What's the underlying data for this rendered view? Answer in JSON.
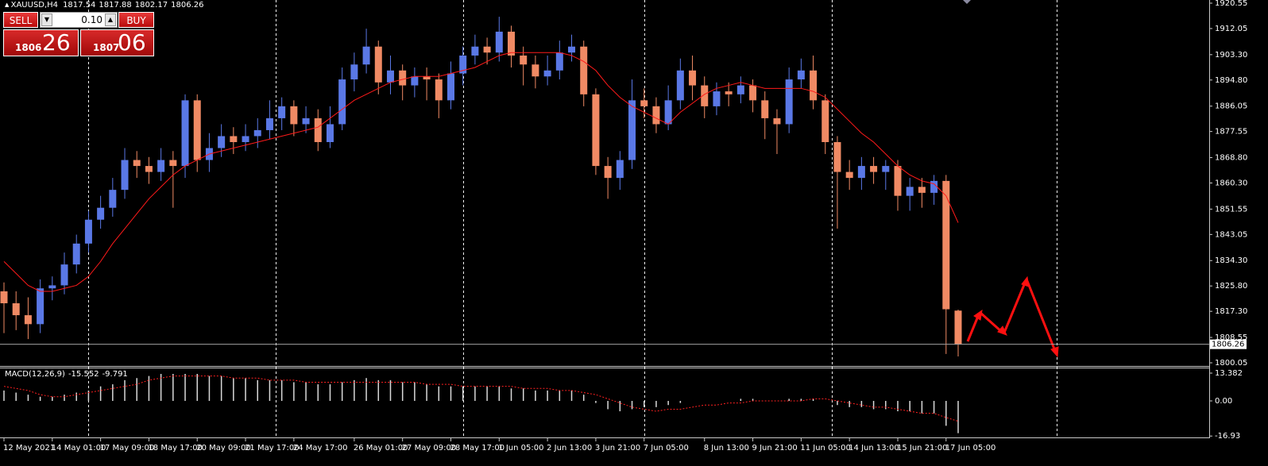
{
  "chart_data": [
    {
      "type": "candlestick",
      "title": "XAUUSD,H4",
      "categories": [
        "12 May 2021",
        null,
        null,
        null,
        "14 May 01:00",
        null,
        null,
        null,
        "17 May 09:00",
        null,
        null,
        null,
        "18 May 17:00",
        null,
        null,
        null,
        "20 May 09:00",
        null,
        null,
        null,
        "21 May 17:00",
        null,
        null,
        null,
        "24 May 17:00",
        null,
        null,
        null,
        null,
        "26 May 01:00",
        null,
        null,
        null,
        "27 May 09:00",
        null,
        null,
        null,
        "28 May 17:00",
        null,
        null,
        null,
        "1 Jun 05:00",
        null,
        null,
        null,
        "2 Jun 13:00",
        null,
        null,
        null,
        "3 Jun 21:00",
        null,
        null,
        null,
        "7 Jun 05:00",
        null,
        null,
        null,
        null,
        "8 Jun 13:00",
        null,
        null,
        null,
        "9 Jun 21:00",
        null,
        null,
        null,
        "11 Jun 05:00",
        null,
        null,
        null,
        "14 Jun 13:00",
        null,
        null,
        null,
        "15 Jun 21:00",
        null,
        null,
        null,
        "17 Jun 05:00",
        null
      ],
      "open": [
        1824,
        1820,
        1816,
        1813,
        1825,
        1826,
        1833,
        1840,
        1848,
        1852,
        1858,
        1868,
        1866,
        1864,
        1868,
        1866,
        1888,
        1868,
        1872,
        1876,
        1874,
        1876,
        1878,
        1882,
        1886,
        1880,
        1882,
        1874,
        1880,
        1895,
        1900,
        1906,
        1894,
        1898,
        1893,
        1896,
        1895,
        1888,
        1897,
        1903,
        1906,
        1904,
        1911,
        1903,
        1900,
        1896,
        1898,
        1904,
        1906,
        1890,
        1866,
        1862,
        1868,
        1888,
        1886,
        1880,
        1888,
        1898,
        1893,
        1886,
        1891,
        1890,
        1893,
        1888,
        1882,
        1880,
        1895,
        1898,
        1888,
        1874,
        1864,
        1862,
        1866,
        1864,
        1866,
        1856,
        1859,
        1857,
        1861,
        1817.54
      ],
      "high": [
        1827,
        1824,
        1822,
        1828,
        1829,
        1837,
        1843,
        1851,
        1856,
        1862,
        1872,
        1871,
        1869,
        1872,
        1871,
        1890,
        1890,
        1877,
        1880,
        1879,
        1880,
        1882,
        1888,
        1889,
        1888,
        1886,
        1885,
        1886,
        1899,
        1904,
        1912,
        1908,
        1903,
        1900,
        1899,
        1899,
        1897,
        1901,
        1906,
        1910,
        1909,
        1916,
        1913,
        1906,
        1903,
        1903,
        1908,
        1910,
        1908,
        1892,
        1869,
        1871,
        1895,
        1892,
        1889,
        1893,
        1902,
        1903,
        1896,
        1894,
        1894,
        1896,
        1895,
        1891,
        1885,
        1899,
        1902,
        1903,
        1890,
        1876,
        1868,
        1869,
        1869,
        1868,
        1868,
        1862,
        1862,
        1863,
        1863,
        1817.88
      ],
      "low": [
        1810,
        1811,
        1808,
        1810,
        1821,
        1823,
        1830,
        1837,
        1845,
        1849,
        1855,
        1862,
        1860,
        1861,
        1852,
        1862,
        1864,
        1864,
        1869,
        1870,
        1871,
        1872,
        1875,
        1878,
        1876,
        1877,
        1871,
        1872,
        1878,
        1891,
        1897,
        1890,
        1890,
        1888,
        1889,
        1888,
        1882,
        1885,
        1893,
        1900,
        1900,
        1901,
        1899,
        1893,
        1892,
        1893,
        1895,
        1901,
        1886,
        1863,
        1855,
        1858,
        1865,
        1882,
        1877,
        1878,
        1885,
        1888,
        1882,
        1883,
        1886,
        1887,
        1884,
        1875,
        1870,
        1877,
        1892,
        1885,
        1870,
        1845,
        1858,
        1858,
        1860,
        1858,
        1851,
        1851,
        1852,
        1853,
        1803,
        1802.17
      ],
      "close": [
        1820,
        1816,
        1813,
        1825,
        1826,
        1833,
        1840,
        1848,
        1852,
        1858,
        1868,
        1866,
        1864,
        1868,
        1866,
        1888,
        1868,
        1872,
        1876,
        1874,
        1876,
        1878,
        1882,
        1886,
        1880,
        1882,
        1874,
        1880,
        1895,
        1900,
        1906,
        1894,
        1898,
        1893,
        1896,
        1895,
        1888,
        1897,
        1903,
        1906,
        1904,
        1911,
        1903,
        1900,
        1896,
        1898,
        1904,
        1906,
        1890,
        1866,
        1862,
        1868,
        1888,
        1886,
        1880,
        1888,
        1898,
        1893,
        1886,
        1891,
        1890,
        1893,
        1888,
        1882,
        1880,
        1895,
        1898,
        1888,
        1874,
        1864,
        1862,
        1866,
        1864,
        1866,
        1856,
        1859,
        1857,
        1861,
        1818,
        1806.26
      ],
      "bull_color": "#5a78e6",
      "bear_color": "#f08a64",
      "moving_average": {
        "color": "#ff1a1a",
        "values": [
          1834,
          1830,
          1826,
          1824,
          1824,
          1825,
          1826,
          1829,
          1834,
          1840,
          1845,
          1850,
          1855,
          1859,
          1863,
          1866,
          1868,
          1870,
          1871,
          1872,
          1873,
          1874,
          1875,
          1876,
          1877,
          1878,
          1879,
          1882,
          1885,
          1888,
          1890,
          1892,
          1894,
          1895,
          1896,
          1896,
          1896,
          1897,
          1898,
          1899,
          1901,
          1903,
          1904,
          1904,
          1904,
          1904,
          1904,
          1903,
          1901,
          1898,
          1893,
          1889,
          1886,
          1884,
          1882,
          1880,
          1884,
          1887,
          1890,
          1892,
          1893,
          1894,
          1893,
          1892,
          1892,
          1892,
          1892,
          1891,
          1889,
          1885,
          1881,
          1877,
          1874,
          1870,
          1866,
          1863,
          1861,
          1860,
          1856,
          1847
        ]
      },
      "ylim": [
        1798.99,
        1921.61
      ],
      "yticks": [
        1920.55,
        1912.05,
        {
          "value": 1903.3,
          "label": "1903.30"
        },
        {
          "value": 1894.8,
          "label": "1894.80"
        },
        1886.05,
        1877.55,
        {
          "value": 1868.8,
          "label": "1868.80"
        },
        {
          "value": 1860.3,
          "label": "1860.30"
        },
        1851.55,
        1843.05,
        {
          "value": 1834.3,
          "label": "1834.30"
        },
        {
          "value": 1825.8,
          "label": "1825.80"
        },
        {
          "value": 1817.3,
          "label": "1817.30"
        },
        1808.55,
        1800.05
      ]
    },
    {
      "type": "macd",
      "title": "MACD(12,26,9)",
      "histogram": [
        5,
        4,
        3,
        2,
        2,
        3,
        4,
        5,
        7,
        8,
        10,
        11,
        12,
        13,
        13,
        13,
        13,
        12,
        12,
        11,
        11,
        10,
        10,
        10,
        9,
        9,
        8,
        8,
        9,
        10,
        11,
        10,
        10,
        9,
        9,
        8,
        7,
        7,
        7,
        7,
        7,
        7,
        6,
        6,
        5,
        5,
        5,
        5,
        3,
        -1,
        -4,
        -5,
        -4,
        -3,
        -3,
        -2,
        -1,
        0,
        0,
        0,
        0,
        1,
        1,
        0,
        0,
        1,
        1,
        1,
        0,
        -2,
        -3,
        -3,
        -4,
        -4,
        -5,
        -5,
        -6,
        -6,
        -12,
        -15.552
      ],
      "signal": [
        7,
        6,
        5,
        3,
        2,
        2,
        3,
        4,
        5,
        6,
        7,
        8,
        10,
        11,
        12,
        12,
        12,
        12,
        12,
        11,
        11,
        11,
        10,
        10,
        10,
        9,
        9,
        9,
        9,
        9,
        9,
        9,
        9,
        9,
        9,
        8,
        8,
        8,
        7,
        7,
        7,
        7,
        7,
        6,
        6,
        6,
        5,
        5,
        4,
        3,
        1,
        -1,
        -3,
        -4,
        -5,
        -4,
        -4,
        -3,
        -2,
        -2,
        -1,
        -1,
        0,
        0,
        0,
        0,
        0,
        1,
        1,
        0,
        -1,
        -2,
        -3,
        -3,
        -4,
        -5,
        -6,
        -6,
        -8,
        -9.791
      ],
      "histogram_color": "#d9d9d9",
      "signal_color": "#ff2020",
      "ylim": [
        -17.6,
        16.06
      ],
      "yticks": [
        13.382,
        {
          "value": 0,
          "label": "0.00"
        },
        -16.93
      ]
    }
  ],
  "trade_panel": {
    "sell": "SELL",
    "buy": "BUY",
    "lot": "0.10",
    "sell_big": "1806",
    "sell_small": "26",
    "buy_big": "1807",
    "buy_small": "06"
  }
}
